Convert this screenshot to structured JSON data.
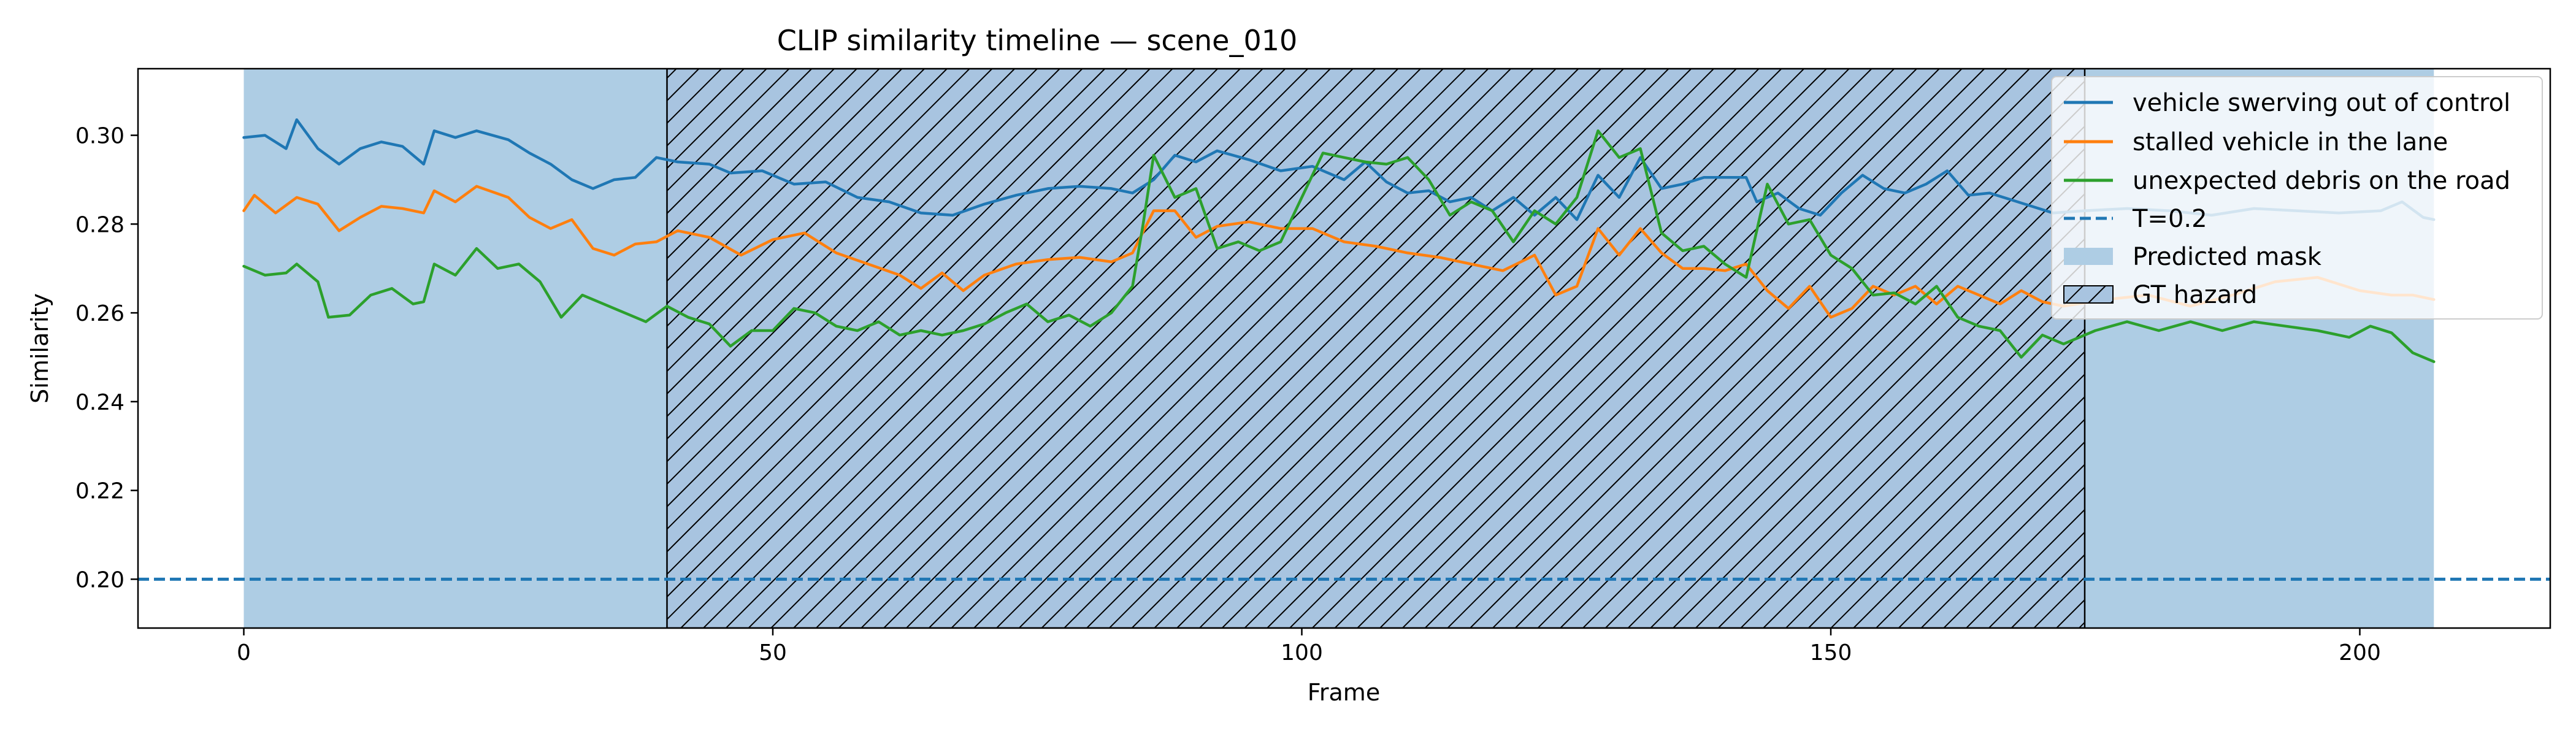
{
  "chart_data": {
    "type": "line",
    "title": "CLIP similarity timeline — scene_010",
    "xlabel": "Frame",
    "ylabel": "Similarity",
    "xlim": [
      -10,
      218
    ],
    "ylim": [
      0.189,
      0.315
    ],
    "xticks": [
      0,
      50,
      100,
      150,
      200
    ],
    "yticks": [
      0.2,
      0.22,
      0.24,
      0.26,
      0.28,
      0.3
    ],
    "xtick_labels": [
      "0",
      "50",
      "100",
      "150",
      "200"
    ],
    "ytick_labels": [
      "0.20",
      "0.22",
      "0.24",
      "0.26",
      "0.28",
      "0.30"
    ],
    "grid": false,
    "legend_position": "upper-right",
    "threshold": {
      "name": "T=0.2",
      "value": 0.2,
      "color": "#1f77b4",
      "style": "dashed"
    },
    "predicted_mask": {
      "name": "Predicted mask",
      "start": 0,
      "end": 207,
      "color": "#aecde4"
    },
    "gt_hazard": {
      "name": "GT hazard",
      "start": 40,
      "end": 174,
      "color": "#a8c4e0"
    },
    "series": [
      {
        "name": "vehicle swerving out of control",
        "color": "#1f77b4",
        "points": [
          [
            0,
            0.2995
          ],
          [
            2,
            0.3
          ],
          [
            4,
            0.297
          ],
          [
            5,
            0.3035
          ],
          [
            7,
            0.297
          ],
          [
            9,
            0.2935
          ],
          [
            11,
            0.297
          ],
          [
            13,
            0.2985
          ],
          [
            15,
            0.2975
          ],
          [
            17,
            0.2935
          ],
          [
            18,
            0.301
          ],
          [
            20,
            0.2995
          ],
          [
            22,
            0.301
          ],
          [
            25,
            0.299
          ],
          [
            27,
            0.296
          ],
          [
            29,
            0.2935
          ],
          [
            31,
            0.29
          ],
          [
            33,
            0.288
          ],
          [
            35,
            0.29
          ],
          [
            37,
            0.2905
          ],
          [
            39,
            0.295
          ],
          [
            41,
            0.294
          ],
          [
            44,
            0.2935
          ],
          [
            46,
            0.2915
          ],
          [
            49,
            0.292
          ],
          [
            52,
            0.289
          ],
          [
            55,
            0.2895
          ],
          [
            58,
            0.286
          ],
          [
            61,
            0.285
          ],
          [
            64,
            0.2825
          ],
          [
            67,
            0.282
          ],
          [
            70,
            0.2845
          ],
          [
            73,
            0.2865
          ],
          [
            76,
            0.288
          ],
          [
            79,
            0.2885
          ],
          [
            82,
            0.288
          ],
          [
            84,
            0.287
          ],
          [
            86,
            0.29
          ],
          [
            88,
            0.2955
          ],
          [
            90,
            0.294
          ],
          [
            92,
            0.2965
          ],
          [
            95,
            0.2945
          ],
          [
            98,
            0.292
          ],
          [
            101,
            0.293
          ],
          [
            104,
            0.29
          ],
          [
            106,
            0.294
          ],
          [
            108,
            0.2895
          ],
          [
            110,
            0.287
          ],
          [
            112,
            0.2875
          ],
          [
            114,
            0.285
          ],
          [
            116,
            0.286
          ],
          [
            118,
            0.283
          ],
          [
            120,
            0.286
          ],
          [
            122,
            0.282
          ],
          [
            124,
            0.286
          ],
          [
            126,
            0.281
          ],
          [
            128,
            0.291
          ],
          [
            130,
            0.286
          ],
          [
            132,
            0.295
          ],
          [
            134,
            0.288
          ],
          [
            136,
            0.289
          ],
          [
            138,
            0.2905
          ],
          [
            140,
            0.2905
          ],
          [
            142,
            0.2905
          ],
          [
            143,
            0.285
          ],
          [
            145,
            0.287
          ],
          [
            147,
            0.2835
          ],
          [
            149,
            0.282
          ],
          [
            151,
            0.287
          ],
          [
            153,
            0.291
          ],
          [
            155,
            0.288
          ],
          [
            157,
            0.287
          ],
          [
            159,
            0.289
          ],
          [
            161,
            0.292
          ],
          [
            163,
            0.2865
          ],
          [
            165,
            0.287
          ],
          [
            167,
            0.2855
          ],
          [
            169,
            0.284
          ],
          [
            171,
            0.2825
          ],
          [
            174,
            0.283
          ],
          [
            178,
            0.2835
          ],
          [
            182,
            0.283
          ],
          [
            186,
            0.282
          ],
          [
            190,
            0.2835
          ],
          [
            194,
            0.283
          ],
          [
            198,
            0.2825
          ],
          [
            202,
            0.283
          ],
          [
            204,
            0.285
          ],
          [
            206,
            0.2815
          ],
          [
            207,
            0.281
          ]
        ]
      },
      {
        "name": "stalled vehicle in the lane",
        "color": "#ff7f0e",
        "points": [
          [
            0,
            0.283
          ],
          [
            1,
            0.2865
          ],
          [
            3,
            0.2825
          ],
          [
            5,
            0.286
          ],
          [
            7,
            0.2845
          ],
          [
            9,
            0.2785
          ],
          [
            11,
            0.2815
          ],
          [
            13,
            0.284
          ],
          [
            15,
            0.2835
          ],
          [
            17,
            0.2825
          ],
          [
            18,
            0.2875
          ],
          [
            20,
            0.285
          ],
          [
            22,
            0.2885
          ],
          [
            25,
            0.286
          ],
          [
            27,
            0.2815
          ],
          [
            29,
            0.279
          ],
          [
            31,
            0.281
          ],
          [
            33,
            0.2745
          ],
          [
            35,
            0.273
          ],
          [
            37,
            0.2755
          ],
          [
            39,
            0.276
          ],
          [
            41,
            0.2785
          ],
          [
            44,
            0.277
          ],
          [
            47,
            0.273
          ],
          [
            50,
            0.2765
          ],
          [
            53,
            0.278
          ],
          [
            56,
            0.2735
          ],
          [
            59,
            0.271
          ],
          [
            62,
            0.2685
          ],
          [
            64,
            0.2655
          ],
          [
            66,
            0.269
          ],
          [
            68,
            0.265
          ],
          [
            70,
            0.2685
          ],
          [
            73,
            0.271
          ],
          [
            76,
            0.272
          ],
          [
            79,
            0.2725
          ],
          [
            82,
            0.2715
          ],
          [
            84,
            0.2735
          ],
          [
            86,
            0.283
          ],
          [
            88,
            0.283
          ],
          [
            90,
            0.277
          ],
          [
            92,
            0.2795
          ],
          [
            95,
            0.2805
          ],
          [
            98,
            0.279
          ],
          [
            101,
            0.279
          ],
          [
            104,
            0.276
          ],
          [
            107,
            0.275
          ],
          [
            110,
            0.2735
          ],
          [
            113,
            0.2725
          ],
          [
            116,
            0.271
          ],
          [
            119,
            0.2695
          ],
          [
            122,
            0.273
          ],
          [
            124,
            0.264
          ],
          [
            126,
            0.266
          ],
          [
            128,
            0.279
          ],
          [
            130,
            0.273
          ],
          [
            132,
            0.279
          ],
          [
            134,
            0.2735
          ],
          [
            136,
            0.27
          ],
          [
            138,
            0.27
          ],
          [
            140,
            0.2695
          ],
          [
            142,
            0.271
          ],
          [
            144,
            0.265
          ],
          [
            146,
            0.261
          ],
          [
            148,
            0.266
          ],
          [
            150,
            0.259
          ],
          [
            152,
            0.261
          ],
          [
            154,
            0.266
          ],
          [
            156,
            0.264
          ],
          [
            158,
            0.266
          ],
          [
            160,
            0.262
          ],
          [
            162,
            0.266
          ],
          [
            164,
            0.264
          ],
          [
            166,
            0.262
          ],
          [
            168,
            0.265
          ],
          [
            170,
            0.2625
          ],
          [
            172,
            0.2615
          ],
          [
            176,
            0.263
          ],
          [
            180,
            0.264
          ],
          [
            184,
            0.2615
          ],
          [
            188,
            0.264
          ],
          [
            192,
            0.267
          ],
          [
            196,
            0.268
          ],
          [
            200,
            0.265
          ],
          [
            203,
            0.264
          ],
          [
            205,
            0.264
          ],
          [
            207,
            0.263
          ]
        ]
      },
      {
        "name": "unexpected debris on the road",
        "color": "#2ca02c",
        "points": [
          [
            0,
            0.2705
          ],
          [
            2,
            0.2685
          ],
          [
            4,
            0.269
          ],
          [
            5,
            0.271
          ],
          [
            7,
            0.267
          ],
          [
            8,
            0.259
          ],
          [
            10,
            0.2595
          ],
          [
            12,
            0.264
          ],
          [
            14,
            0.2655
          ],
          [
            16,
            0.262
          ],
          [
            17,
            0.2625
          ],
          [
            18,
            0.271
          ],
          [
            20,
            0.2685
          ],
          [
            22,
            0.2745
          ],
          [
            24,
            0.27
          ],
          [
            26,
            0.271
          ],
          [
            28,
            0.267
          ],
          [
            30,
            0.259
          ],
          [
            32,
            0.264
          ],
          [
            34,
            0.262
          ],
          [
            36,
            0.26
          ],
          [
            38,
            0.258
          ],
          [
            40,
            0.2615
          ],
          [
            42,
            0.259
          ],
          [
            44,
            0.2575
          ],
          [
            46,
            0.2525
          ],
          [
            48,
            0.256
          ],
          [
            50,
            0.256
          ],
          [
            52,
            0.261
          ],
          [
            54,
            0.26
          ],
          [
            56,
            0.257
          ],
          [
            58,
            0.256
          ],
          [
            60,
            0.258
          ],
          [
            62,
            0.255
          ],
          [
            64,
            0.256
          ],
          [
            66,
            0.255
          ],
          [
            68,
            0.256
          ],
          [
            70,
            0.2575
          ],
          [
            72,
            0.26
          ],
          [
            74,
            0.262
          ],
          [
            76,
            0.258
          ],
          [
            78,
            0.2595
          ],
          [
            80,
            0.257
          ],
          [
            82,
            0.26
          ],
          [
            84,
            0.266
          ],
          [
            85,
            0.28
          ],
          [
            86,
            0.2955
          ],
          [
            88,
            0.286
          ],
          [
            90,
            0.288
          ],
          [
            92,
            0.2745
          ],
          [
            94,
            0.276
          ],
          [
            96,
            0.274
          ],
          [
            98,
            0.276
          ],
          [
            100,
            0.286
          ],
          [
            102,
            0.296
          ],
          [
            104,
            0.295
          ],
          [
            106,
            0.294
          ],
          [
            108,
            0.2935
          ],
          [
            110,
            0.295
          ],
          [
            112,
            0.29
          ],
          [
            114,
            0.282
          ],
          [
            116,
            0.285
          ],
          [
            118,
            0.283
          ],
          [
            120,
            0.276
          ],
          [
            122,
            0.283
          ],
          [
            124,
            0.28
          ],
          [
            126,
            0.286
          ],
          [
            128,
            0.301
          ],
          [
            130,
            0.295
          ],
          [
            132,
            0.297
          ],
          [
            134,
            0.278
          ],
          [
            136,
            0.274
          ],
          [
            138,
            0.275
          ],
          [
            140,
            0.271
          ],
          [
            142,
            0.268
          ],
          [
            144,
            0.289
          ],
          [
            146,
            0.28
          ],
          [
            148,
            0.281
          ],
          [
            150,
            0.273
          ],
          [
            152,
            0.27
          ],
          [
            154,
            0.264
          ],
          [
            156,
            0.2645
          ],
          [
            158,
            0.262
          ],
          [
            160,
            0.266
          ],
          [
            162,
            0.259
          ],
          [
            164,
            0.257
          ],
          [
            166,
            0.256
          ],
          [
            168,
            0.25
          ],
          [
            170,
            0.255
          ],
          [
            172,
            0.253
          ],
          [
            175,
            0.256
          ],
          [
            178,
            0.258
          ],
          [
            181,
            0.256
          ],
          [
            184,
            0.258
          ],
          [
            187,
            0.256
          ],
          [
            190,
            0.258
          ],
          [
            193,
            0.257
          ],
          [
            196,
            0.256
          ],
          [
            199,
            0.2545
          ],
          [
            201,
            0.257
          ],
          [
            203,
            0.2555
          ],
          [
            205,
            0.251
          ],
          [
            207,
            0.249
          ]
        ]
      }
    ]
  }
}
